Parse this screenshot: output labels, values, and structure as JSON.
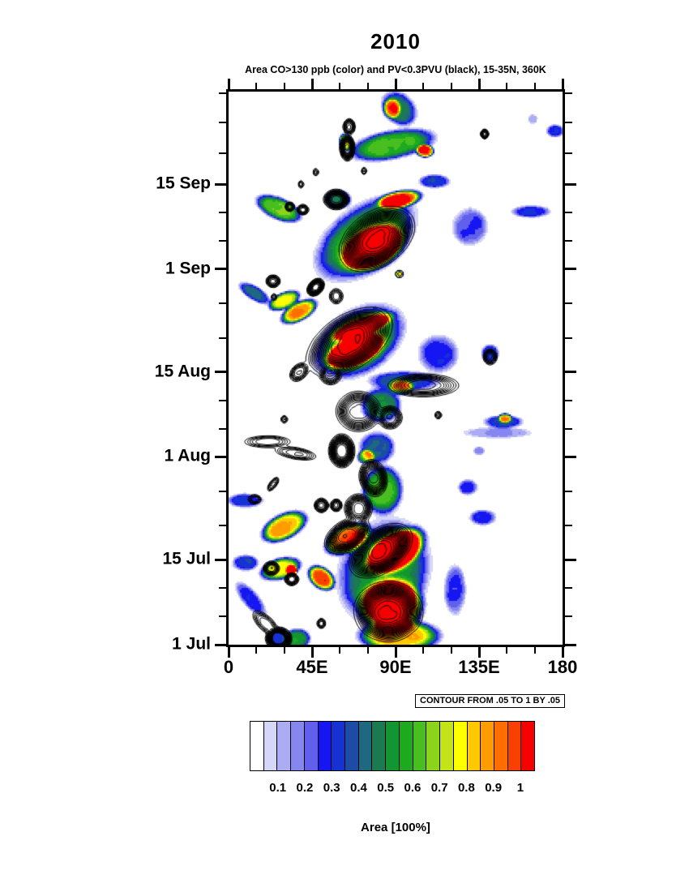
{
  "contour_note": "CONTOUR FROM .05 TO 1 BY .05",
  "chart_data": {
    "type": "heatmap",
    "title": "2010",
    "subtitle": "Area CO>130 ppb (color) and PV<0.3PVU (black), 15-35N, 360K",
    "units": "Area [100%]",
    "legend_position": "bottom",
    "grid": "off",
    "x_axis": {
      "range_deg": [
        0,
        180
      ],
      "minor_step_deg": 15,
      "major_ticks": [
        {
          "deg": 0,
          "label": "0"
        },
        {
          "deg": 45,
          "label": "45E"
        },
        {
          "deg": 90,
          "label": "90E"
        },
        {
          "deg": 135,
          "label": "135E"
        },
        {
          "deg": 180,
          "label": "180"
        }
      ]
    },
    "y_axis": {
      "range_days_from_jul1": [
        0,
        91.3
      ],
      "major_ticks": [
        {
          "day": 0,
          "label": "1 Jul"
        },
        {
          "day": 14,
          "label": "15 Jul"
        },
        {
          "day": 31,
          "label": "1 Aug"
        },
        {
          "day": 45,
          "label": "15 Aug"
        },
        {
          "day": 62,
          "label": "1 Sep"
        },
        {
          "day": 76,
          "label": "15 Sep"
        }
      ],
      "minor_divisions_per_gap": 3,
      "extra_minor_days": [
        81.1,
        86.2,
        91.0
      ]
    },
    "levels": {
      "from": 0.05,
      "to": 1.0,
      "by": 0.05
    },
    "palette": [
      "#FFFFFF",
      "#D6D6F8",
      "#ACACF4",
      "#8686F0",
      "#6060EC",
      "#1616F2",
      "#1632D4",
      "#1C4CA6",
      "#1E6880",
      "#1A7A50",
      "#129632",
      "#1EAA1E",
      "#48BE20",
      "#8CD41C",
      "#C4E418",
      "#FFFF00",
      "#FFC800",
      "#FF9C00",
      "#FF6E00",
      "#F84000",
      "#F60000"
    ],
    "colorbar_values": [
      "0.1",
      "0.2",
      "0.3",
      "0.4",
      "0.5",
      "0.6",
      "0.7",
      "0.8",
      "0.9",
      "1"
    ],
    "blob_format": [
      "lon_deg",
      "day_from_jul1",
      "sigma_lon_deg",
      "sigma_day",
      "peak_value",
      "slope_day_per_deg"
    ],
    "co_area_blobs": [
      [
        92,
        1.5,
        18,
        2.2,
        0.88,
        0
      ],
      [
        88,
        6.5,
        14,
        3.6,
        1.12,
        0
      ],
      [
        84,
        12,
        20,
        7,
        0.55,
        0.05
      ],
      [
        90,
        15.5,
        13,
        2.8,
        1.08,
        0.12
      ],
      [
        64,
        17.5,
        10,
        2.0,
        0.95,
        0.1
      ],
      [
        50,
        11,
        6,
        1.6,
        1.0,
        -0.1
      ],
      [
        28,
        12.5,
        9,
        1.5,
        0.78,
        0.06
      ],
      [
        34,
        12.2,
        2.5,
        0.8,
        0.9,
        0
      ],
      [
        37,
        1,
        6,
        1.4,
        0.55,
        0
      ],
      [
        27,
        1,
        5,
        1.2,
        0.35,
        0
      ],
      [
        12,
        7.5,
        7,
        1.6,
        0.28,
        -0.25
      ],
      [
        9,
        13.5,
        6,
        1.1,
        0.32,
        0
      ],
      [
        122,
        9,
        5,
        3.5,
        0.25,
        0
      ],
      [
        30,
        19.5,
        10,
        1.9,
        0.88,
        0.1
      ],
      [
        137,
        21,
        6,
        1.1,
        0.3,
        0
      ],
      [
        129,
        26,
        4.5,
        1.1,
        0.28,
        0
      ],
      [
        83,
        25.5,
        9,
        3.4,
        0.62,
        0
      ],
      [
        9,
        23.8,
        8,
        1.0,
        0.33,
        0
      ],
      [
        80,
        32.5,
        8,
        2.2,
        0.42,
        0
      ],
      [
        74,
        31,
        4,
        1.0,
        0.58,
        0
      ],
      [
        135,
        32,
        2.5,
        0.6,
        0.18,
        0
      ],
      [
        148,
        36.8,
        9,
        0.9,
        0.35,
        0
      ],
      [
        149,
        37.4,
        3,
        0.7,
        0.58,
        0
      ],
      [
        145,
        35,
        16,
        0.8,
        0.16,
        0
      ],
      [
        82,
        39.5,
        9,
        2.4,
        0.5,
        0
      ],
      [
        93,
        42.5,
        5.5,
        1.1,
        0.58,
        0
      ],
      [
        95,
        43.5,
        16,
        1.4,
        0.38,
        0
      ],
      [
        70,
        50,
        20,
        4.6,
        0.62,
        0.1
      ],
      [
        68,
        48.5,
        13,
        2.1,
        1.12,
        0.1
      ],
      [
        72,
        52.5,
        14,
        1.4,
        0.8,
        0.1
      ],
      [
        38,
        55,
        8,
        1.4,
        0.9,
        0.12
      ],
      [
        113,
        48,
        9,
        2.6,
        0.3,
        0
      ],
      [
        141,
        48,
        4,
        1.3,
        0.33,
        0
      ],
      [
        30,
        56.8,
        7,
        1.2,
        0.78,
        0.1
      ],
      [
        14,
        58,
        7,
        1.1,
        0.4,
        -0.15
      ],
      [
        78,
        65.5,
        14,
        3.0,
        1.12,
        0.08
      ],
      [
        74,
        67,
        22,
        5.0,
        0.6,
        0.12
      ],
      [
        92,
        73.5,
        10,
        1.2,
        0.97,
        0.05
      ],
      [
        27,
        72,
        10,
        1.6,
        0.65,
        -0.1
      ],
      [
        59,
        73.5,
        6,
        1.3,
        0.45,
        0
      ],
      [
        130,
        69,
        8,
        2.6,
        0.26,
        0
      ],
      [
        163,
        71.5,
        9,
        0.85,
        0.32,
        0
      ],
      [
        111,
        76.5,
        7,
        0.95,
        0.33,
        0
      ],
      [
        88,
        82.5,
        19,
        2.0,
        0.62,
        0.05
      ],
      [
        106,
        81.5,
        4,
        0.9,
        1.0,
        0
      ],
      [
        63,
        83,
        3,
        1.2,
        0.8,
        0
      ],
      [
        92,
        88.5,
        8,
        2.3,
        0.45,
        -0.08
      ],
      [
        88,
        88.5,
        4,
        1.4,
        0.55,
        0
      ],
      [
        164,
        86.8,
        2.2,
        0.7,
        0.15,
        0
      ],
      [
        176,
        84.8,
        4,
        0.9,
        0.3,
        0
      ],
      [
        92,
        61.2,
        1.8,
        0.5,
        0.8,
        0
      ]
    ],
    "pv_area_blobs": [
      [
        86,
        5.5,
        12,
        3.2,
        1.0,
        0
      ],
      [
        27,
        1,
        4.5,
        1.2,
        1.15,
        0
      ],
      [
        20,
        3.5,
        5,
        1.1,
        0.32,
        -0.2
      ],
      [
        50,
        3.5,
        1.6,
        0.6,
        0.3,
        0
      ],
      [
        82,
        15.5,
        11,
        2.6,
        0.95,
        0.12
      ],
      [
        23,
        12.6,
        3,
        0.8,
        0.5,
        0
      ],
      [
        34,
        10.8,
        2.6,
        0.7,
        0.55,
        0
      ],
      [
        64,
        18,
        8,
        1.8,
        0.85,
        0.1
      ],
      [
        70,
        22.5,
        5,
        1.6,
        0.7,
        0
      ],
      [
        78,
        27.5,
        5,
        2.0,
        0.7,
        -0.05
      ],
      [
        50,
        23,
        2.6,
        0.8,
        0.5,
        0
      ],
      [
        58,
        23,
        2.2,
        0.7,
        0.45,
        0
      ],
      [
        24,
        26.5,
        2.2,
        0.6,
        0.3,
        0.25
      ],
      [
        14,
        24,
        2.6,
        0.55,
        0.3,
        0
      ],
      [
        21,
        33.5,
        9,
        0.7,
        0.3,
        0
      ],
      [
        36,
        31.6,
        8,
        0.7,
        0.3,
        -0.05
      ],
      [
        61,
        32,
        4.5,
        1.8,
        1.05,
        0
      ],
      [
        70,
        38.5,
        8,
        2.2,
        0.7,
        0
      ],
      [
        87,
        37.5,
        4.5,
        1.3,
        0.5,
        0
      ],
      [
        113,
        37.9,
        1.3,
        0.45,
        0.25,
        0
      ],
      [
        30,
        37.2,
        1.3,
        0.45,
        0.25,
        0
      ],
      [
        105,
        42.8,
        13,
        1.3,
        0.5,
        0
      ],
      [
        38,
        45,
        3.5,
        1.0,
        0.4,
        0.1
      ],
      [
        55,
        44.5,
        4,
        1.1,
        0.45,
        0
      ],
      [
        65,
        50,
        15,
        3.2,
        0.95,
        0.12
      ],
      [
        141,
        47.5,
        2.6,
        0.9,
        0.4,
        0
      ],
      [
        47,
        59,
        3,
        0.9,
        0.95,
        0.1
      ],
      [
        24,
        60,
        2.6,
        0.7,
        0.5,
        0
      ],
      [
        58,
        57.5,
        2.6,
        0.9,
        0.35,
        0
      ],
      [
        24.5,
        57.4,
        1.1,
        0.4,
        0.22,
        0
      ],
      [
        80,
        67,
        13,
        3.2,
        1.0,
        0.1
      ],
      [
        58,
        73.5,
        4.5,
        1.1,
        0.8,
        0
      ],
      [
        40,
        71.8,
        2.2,
        0.6,
        0.45,
        0
      ],
      [
        33,
        72.3,
        1.8,
        0.55,
        0.38,
        0
      ],
      [
        47,
        78,
        1.1,
        0.45,
        0.22,
        0
      ],
      [
        73,
        78.2,
        1.1,
        0.45,
        0.22,
        0
      ],
      [
        39,
        76,
        1.1,
        0.45,
        0.22,
        0
      ],
      [
        64,
        82,
        2.6,
        1.4,
        0.9,
        0
      ],
      [
        65,
        85.5,
        2.2,
        0.9,
        0.5,
        0
      ],
      [
        138,
        84.3,
        1.4,
        0.55,
        0.5,
        0
      ],
      [
        92,
        61.2,
        2.0,
        0.55,
        0.12,
        0
      ]
    ]
  }
}
